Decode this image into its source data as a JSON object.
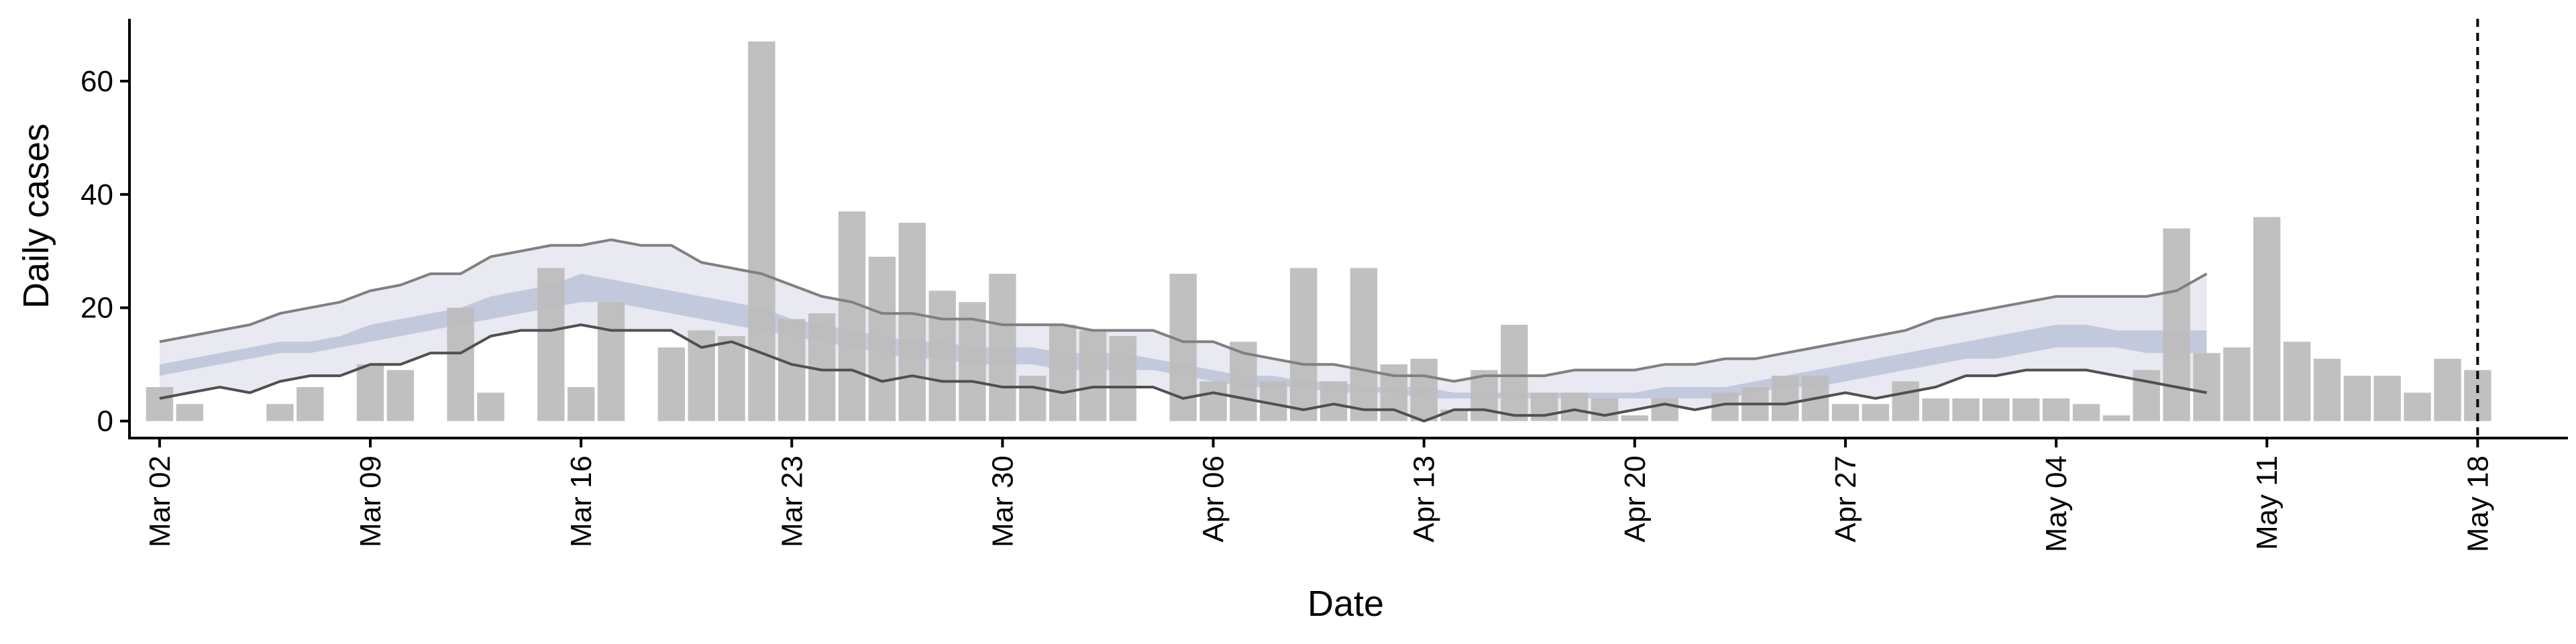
{
  "chart_data": {
    "type": "bar",
    "xlabel": "Date",
    "ylabel": "Daily cases",
    "ylim": [
      -3,
      71
    ],
    "yticks": [
      0,
      20,
      40,
      60
    ],
    "x_date_range": [
      "Mar 01",
      "May 21"
    ],
    "xticks": [
      "Mar 02",
      "Mar 09",
      "Mar 16",
      "Mar 23",
      "Mar 30",
      "Apr 06",
      "Apr 13",
      "Apr 20",
      "Apr 27",
      "May 04",
      "May 11",
      "May 18"
    ],
    "grid": false,
    "legend": "none",
    "dates": [
      "Mar 02",
      "Mar 03",
      "Mar 04",
      "Mar 05",
      "Mar 06",
      "Mar 07",
      "Mar 08",
      "Mar 09",
      "Mar 10",
      "Mar 11",
      "Mar 12",
      "Mar 13",
      "Mar 14",
      "Mar 15",
      "Mar 16",
      "Mar 17",
      "Mar 18",
      "Mar 19",
      "Mar 20",
      "Mar 21",
      "Mar 22",
      "Mar 23",
      "Mar 24",
      "Mar 25",
      "Mar 26",
      "Mar 27",
      "Mar 28",
      "Mar 29",
      "Mar 30",
      "Mar 31",
      "Apr 01",
      "Apr 02",
      "Apr 03",
      "Apr 04",
      "Apr 05",
      "Apr 06",
      "Apr 07",
      "Apr 08",
      "Apr 09",
      "Apr 10",
      "Apr 11",
      "Apr 12",
      "Apr 13",
      "Apr 14",
      "Apr 15",
      "Apr 16",
      "Apr 17",
      "Apr 18",
      "Apr 19",
      "Apr 20",
      "Apr 21",
      "Apr 22",
      "Apr 23",
      "Apr 24",
      "Apr 25",
      "Apr 26",
      "Apr 27",
      "Apr 28",
      "Apr 29",
      "Apr 30",
      "May 01",
      "May 02",
      "May 03",
      "May 04",
      "May 05",
      "May 06",
      "May 07",
      "May 08",
      "May 09",
      "May 10",
      "May 11",
      "May 12",
      "May 13",
      "May 14",
      "May 15",
      "May 16",
      "May 17",
      "May 18"
    ],
    "daily_cases": [
      6,
      3,
      0,
      0,
      3,
      6,
      0,
      10,
      9,
      0,
      20,
      5,
      0,
      27,
      6,
      21,
      0,
      13,
      16,
      15,
      67,
      18,
      19,
      37,
      29,
      35,
      23,
      21,
      26,
      8,
      17,
      16,
      15,
      0,
      26,
      7,
      14,
      7,
      27,
      7,
      27,
      10,
      11,
      2,
      9,
      17,
      5,
      5,
      4,
      1,
      4,
      0,
      5,
      6,
      8,
      8,
      3,
      3,
      7,
      4,
      4,
      4,
      4,
      4,
      3,
      1,
      9,
      34,
      12,
      13,
      36,
      14,
      11,
      8,
      8,
      5,
      11,
      9
    ],
    "nowcast_dates": [
      "Mar 02",
      "Mar 03",
      "Mar 04",
      "Mar 05",
      "Mar 06",
      "Mar 07",
      "Mar 08",
      "Mar 09",
      "Mar 10",
      "Mar 11",
      "Mar 12",
      "Mar 13",
      "Mar 14",
      "Mar 15",
      "Mar 16",
      "Mar 17",
      "Mar 18",
      "Mar 19",
      "Mar 20",
      "Mar 21",
      "Mar 22",
      "Mar 23",
      "Mar 24",
      "Mar 25",
      "Mar 26",
      "Mar 27",
      "Mar 28",
      "Mar 29",
      "Mar 30",
      "Mar 31",
      "Apr 01",
      "Apr 02",
      "Apr 03",
      "Apr 04",
      "Apr 05",
      "Apr 06",
      "Apr 07",
      "Apr 08",
      "Apr 09",
      "Apr 10",
      "Apr 11",
      "Apr 12",
      "Apr 13",
      "Apr 14",
      "Apr 15",
      "Apr 16",
      "Apr 17",
      "Apr 18",
      "Apr 19",
      "Apr 20",
      "Apr 21",
      "Apr 22",
      "Apr 23",
      "Apr 24",
      "Apr 25",
      "Apr 26",
      "Apr 27",
      "Apr 28",
      "Apr 29",
      "Apr 30",
      "May 01",
      "May 02",
      "May 03",
      "May 04",
      "May 05",
      "May 06",
      "May 07",
      "May 08",
      "May 09"
    ],
    "upper_90": [
      14,
      15,
      16,
      17,
      19,
      20,
      21,
      23,
      24,
      26,
      26,
      29,
      30,
      31,
      31,
      32,
      31,
      31,
      28,
      27,
      26,
      24,
      22,
      21,
      19,
      19,
      18,
      18,
      17,
      17,
      17,
      16,
      16,
      16,
      14,
      14,
      12,
      11,
      10,
      10,
      9,
      8,
      8,
      7,
      8,
      8,
      8,
      9,
      9,
      9,
      10,
      10,
      11,
      11,
      12,
      13,
      14,
      15,
      16,
      18,
      19,
      20,
      21,
      22,
      22,
      22,
      22,
      23,
      26
    ],
    "upper_50": [
      10,
      11,
      12,
      13,
      14,
      14,
      15,
      17,
      18,
      19,
      20,
      22,
      23,
      24,
      26,
      25,
      24,
      23,
      22,
      21,
      20,
      18,
      17,
      16,
      15,
      14,
      14,
      13,
      13,
      13,
      12,
      12,
      12,
      11,
      10,
      9,
      8,
      8,
      7,
      7,
      6,
      6,
      6,
      5,
      5,
      5,
      5,
      5,
      5,
      5,
      6,
      6,
      6,
      7,
      8,
      9,
      10,
      11,
      12,
      13,
      14,
      15,
      16,
      17,
      17,
      16,
      16,
      16,
      16
    ],
    "lower_50": [
      8,
      9,
      10,
      11,
      12,
      12,
      13,
      14,
      15,
      16,
      17,
      18,
      19,
      20,
      21,
      21,
      20,
      19,
      18,
      17,
      16,
      15,
      14,
      13,
      12,
      11,
      11,
      10,
      10,
      10,
      9,
      9,
      9,
      9,
      8,
      7,
      6,
      6,
      6,
      5,
      5,
      5,
      4,
      4,
      4,
      4,
      4,
      4,
      4,
      4,
      4,
      4,
      4,
      5,
      6,
      6,
      7,
      8,
      9,
      10,
      11,
      11,
      12,
      13,
      13,
      13,
      12,
      12,
      12
    ],
    "lower_90": [
      4,
      5,
      6,
      5,
      7,
      8,
      8,
      10,
      10,
      12,
      12,
      15,
      16,
      16,
      17,
      16,
      16,
      16,
      13,
      14,
      12,
      10,
      9,
      9,
      7,
      8,
      7,
      7,
      6,
      6,
      5,
      6,
      6,
      6,
      4,
      5,
      4,
      3,
      2,
      3,
      2,
      2,
      0,
      2,
      2,
      1,
      1,
      2,
      1,
      2,
      3,
      2,
      3,
      3,
      3,
      4,
      5,
      4,
      5,
      6,
      8,
      8,
      9,
      9,
      9,
      8,
      7,
      6,
      5
    ],
    "marker_date": "May 18",
    "colors": {
      "bars": "#bdbdbd",
      "band_outer": "#e8e9f1",
      "band_inner": "#c3c9dd",
      "upper_line": "#808080",
      "lower_line": "#505050",
      "axis": "#000000",
      "marker_line": "#000000"
    }
  }
}
